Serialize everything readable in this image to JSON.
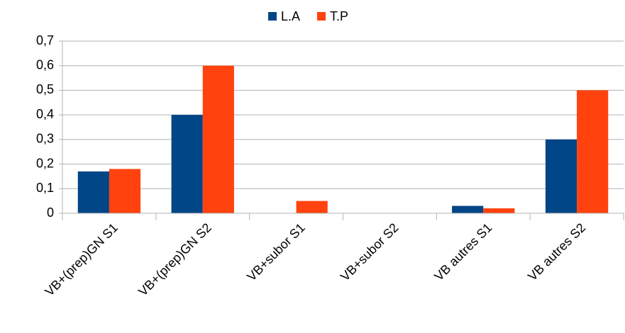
{
  "chart_data": {
    "type": "bar",
    "categories": [
      "VB+(prep)GN S1",
      "VB+(prep)GN S2",
      "VB+subor S1",
      "VB+subor S2",
      "VB autres S1",
      "VB autres S2"
    ],
    "series": [
      {
        "name": "L.A",
        "color": "#004586",
        "values": [
          0.17,
          0.4,
          0,
          0,
          0.03,
          0.3
        ]
      },
      {
        "name": "T.P",
        "color": "#ff420e",
        "values": [
          0.18,
          0.6,
          0.05,
          0,
          0.02,
          0.5
        ]
      }
    ],
    "ylim": [
      0,
      0.7
    ],
    "yticks": [
      0,
      {
        "value": 0.1,
        "label": "0,1"
      },
      {
        "value": 0.2,
        "label": "0,2"
      },
      {
        "value": 0.3,
        "label": "0,3"
      },
      {
        "value": 0.4,
        "label": "0,4"
      },
      {
        "value": 0.5,
        "label": "0,5"
      },
      {
        "value": 0.6,
        "label": "0,6"
      },
      {
        "value": 0.7,
        "label": "0,7"
      }
    ],
    "grid": true,
    "legend": "top"
  }
}
